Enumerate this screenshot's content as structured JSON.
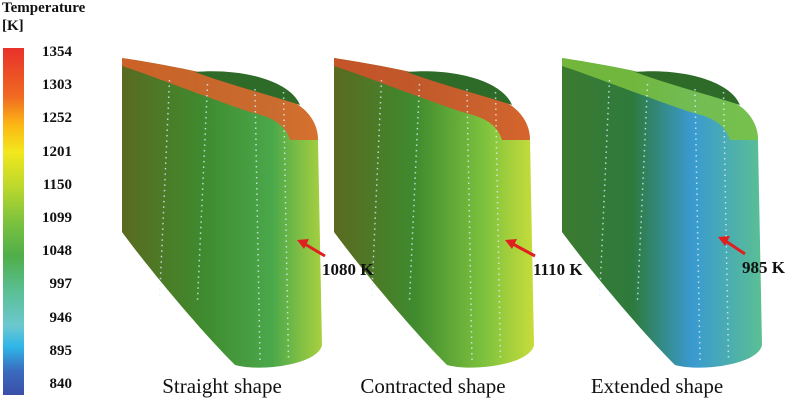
{
  "legend": {
    "title_line1": "Temperature",
    "title_line2": "[K]",
    "ticks": [
      "1354",
      "1303",
      "1252",
      "1201",
      "1150",
      "1099",
      "1048",
      "997",
      "946",
      "895",
      "840"
    ],
    "colors": [
      "#e8312a",
      "#f06a22",
      "#fcb614",
      "#f2e81d",
      "#bcd82c",
      "#7cc23e",
      "#4fae4a",
      "#5abf94",
      "#6cc8cf",
      "#2fb6e8",
      "#3a6cc0",
      "#3a4fa8"
    ]
  },
  "panels": [
    {
      "caption": "Straight shape",
      "value_label": "1080 K"
    },
    {
      "caption": "Contracted shape",
      "value_label": "1110 K"
    },
    {
      "caption": "Extended shape",
      "value_label": "985 K"
    }
  ],
  "arrow_color": "#e02020"
}
